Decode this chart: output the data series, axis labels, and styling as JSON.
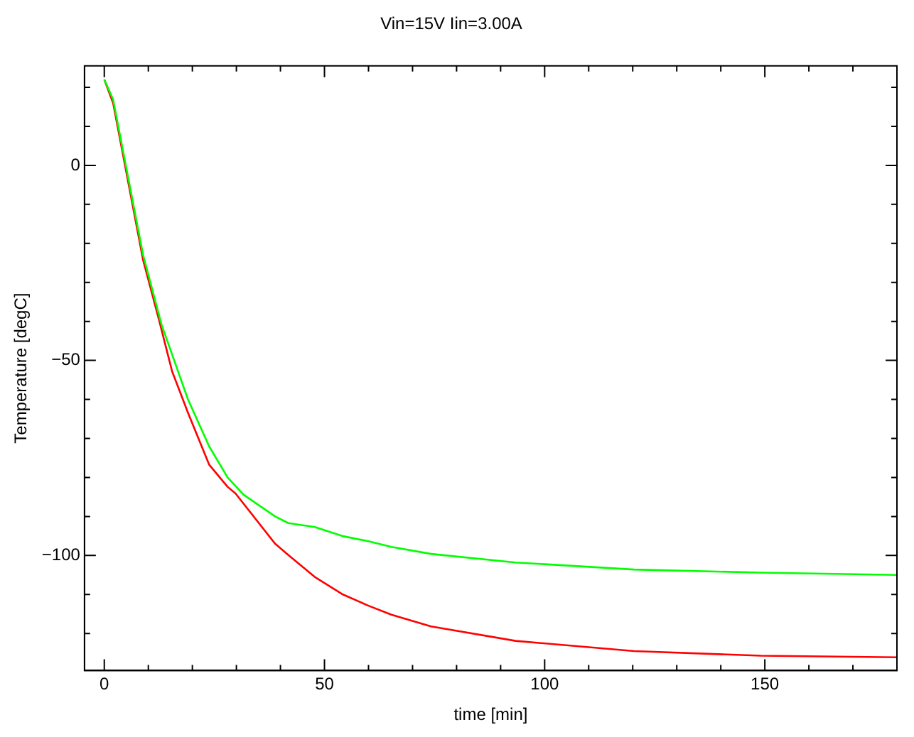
{
  "chart_data": {
    "type": "line",
    "title": "Vin=15V Iin=3.00A",
    "xlabel": "time [min]",
    "ylabel": "Temperature [degC]",
    "xlim": [
      -4.5,
      180
    ],
    "ylim": [
      -129.5,
      25.5
    ],
    "xticks": [
      0,
      {
        "value": 10,
        "label": null
      },
      {
        "value": 20,
        "label": null
      },
      {
        "value": 30,
        "label": null
      },
      {
        "value": 40,
        "label": null
      },
      50,
      {
        "value": 60,
        "label": null
      },
      {
        "value": 70,
        "label": null
      },
      {
        "value": 80,
        "label": null
      },
      {
        "value": 90,
        "label": null
      },
      100,
      {
        "value": 110,
        "label": null
      },
      {
        "value": 120,
        "label": null
      },
      {
        "value": 130,
        "label": null
      },
      {
        "value": 140,
        "label": null
      },
      150,
      {
        "value": 160,
        "label": null
      },
      {
        "value": 170,
        "label": null
      },
      {
        "value": 180,
        "label": null
      }
    ],
    "yticks": [
      {
        "value": -120,
        "label": null
      },
      {
        "value": -110,
        "label": null
      },
      -100,
      {
        "value": -90,
        "label": null
      },
      {
        "value": -80,
        "label": null
      },
      {
        "value": -70,
        "label": null
      },
      {
        "value": -60,
        "label": null
      },
      -50,
      {
        "value": -40,
        "label": null
      },
      {
        "value": -30,
        "label": null
      },
      {
        "value": -20,
        "label": null
      },
      {
        "value": -10,
        "label": null
      },
      0,
      {
        "value": 10,
        "label": null
      },
      {
        "value": 20,
        "label": null
      }
    ],
    "grid": false,
    "legend": false,
    "marker": "none",
    "line_style": "solid",
    "series": [
      {
        "color": "#00ff00",
        "x": [
          0,
          2,
          8.8,
          13,
          19,
          23.8,
          28,
          31.6,
          38.8,
          41.8,
          47.8,
          54,
          59.8,
          65.2,
          74.2,
          93.4,
          120.3,
          149.1,
          180
        ],
        "values": [
          22,
          16.9,
          -22.9,
          -40.8,
          -60,
          -72,
          -80,
          -84.4,
          -90,
          -91.7,
          -92.7,
          -95,
          -96.3,
          -97.8,
          -99.6,
          -101.8,
          -103.6,
          -104.4,
          -105
        ]
      },
      {
        "color": "#ff0000",
        "x": [
          0,
          2,
          8.8,
          12.4,
          15.4,
          19,
          23.8,
          28,
          29.8,
          38.8,
          41.8,
          47.8,
          54,
          59.8,
          65.2,
          74.2,
          93.4,
          120.3,
          149.1,
          180
        ],
        "values": [
          22,
          16,
          -24.2,
          -39.5,
          -52.8,
          -63.4,
          -76.7,
          -82.4,
          -84.1,
          -97,
          -99.9,
          -105.5,
          -109.9,
          -112.8,
          -115.2,
          -118.2,
          -121.9,
          -124.5,
          -125.7,
          -126.1
        ]
      }
    ]
  }
}
